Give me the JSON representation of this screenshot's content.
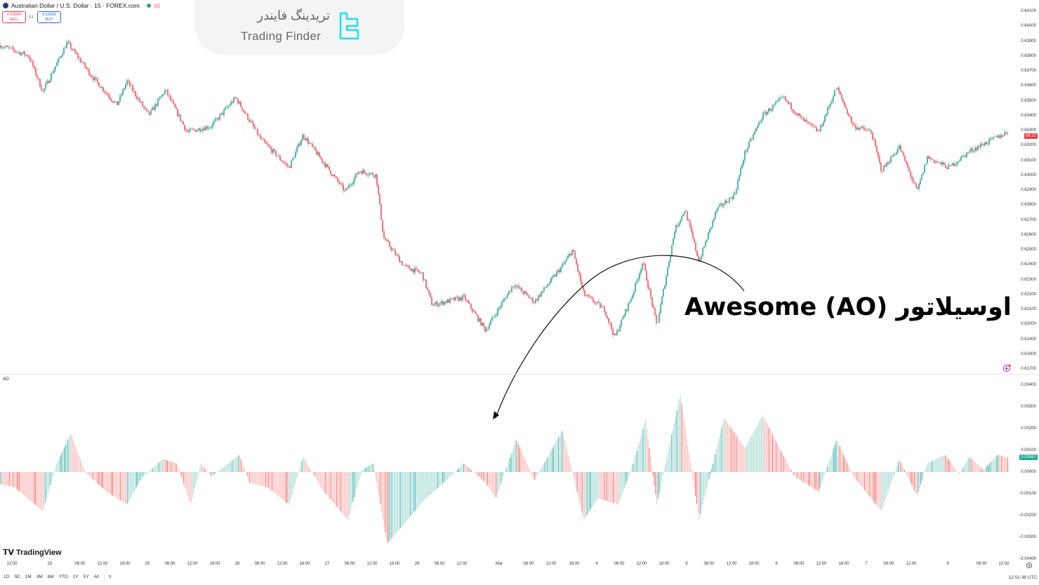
{
  "header": {
    "symbol": "Australian Dollar / U.S. Dollar · 15 · FOREX.com",
    "sell_price": "0.63264",
    "sell_label": "SELL",
    "buy_price": "0.63265",
    "buy_label": "BUY",
    "spread": "0.1"
  },
  "watermark": {
    "name_fa": "تریدینگ فایندر",
    "name_en": "Trading Finder",
    "accent": "#19e3f0"
  },
  "annotation": "اوسیلاتور Awesome (AO)",
  "price_axis": {
    "labels": [
      "0.64100",
      "0.64000",
      "0.63900",
      "0.63800",
      "0.63700",
      "0.63600",
      "0.63500",
      "0.63400",
      "0.63300",
      "0.63200",
      "0.63100",
      "0.63000",
      "0.62900",
      "0.62800",
      "0.62700",
      "0.62600",
      "0.62500",
      "0.62400",
      "0.62300",
      "0.62200",
      "0.62100",
      "0.62000",
      "0.61900",
      "0.61800",
      "0.61700"
    ],
    "countdown": "08:22"
  },
  "ao_axis": {
    "labels": [
      "0.00400",
      "0.00300",
      "0.00200",
      "0.00100",
      "0.00000",
      "−0.00100",
      "−0.00200",
      "−0.00300",
      "−0.00400"
    ],
    "current": "0.00067"
  },
  "ao_label": "AO",
  "time_axis": [
    "12:00",
    "23",
    "06:00",
    "12:00",
    "18:00",
    "25",
    "06:00",
    "12:00",
    "18:00",
    "26",
    "06:00",
    "12:00",
    "18:00",
    "27",
    "06:00",
    "12:00",
    "18:00",
    "28",
    "06:00",
    "12:00",
    "Mar",
    "06:00",
    "12:00",
    "18:00",
    "4",
    "06:00",
    "12:00",
    "18:00",
    "5",
    "06:00",
    "12:00",
    "18:00",
    "6",
    "06:00",
    "12:00",
    "18:00",
    "7",
    "06:00",
    "12:00",
    "9",
    "06:00",
    "12:00"
  ],
  "range_buttons": [
    "1D",
    "5D",
    "1M",
    "3M",
    "6M",
    "YTD",
    "1Y",
    "5Y",
    "All"
  ],
  "clock": "12:51:38 UTC",
  "branding": "TradingView",
  "colors": {
    "up": "#089981",
    "down": "#f23645",
    "ao_up": "#26a69a",
    "ao_down": "#ef5350"
  },
  "chart_data": [
    {
      "type": "candlestick",
      "title": "Australian Dollar / U.S. Dollar · 15 · FOREX.com",
      "x_unit": "15-min bar index",
      "ylim": [
        0.617,
        0.641
      ],
      "close_path": [
        [
          0,
          0.6387
        ],
        [
          30,
          0.638
        ],
        [
          45,
          0.6356
        ],
        [
          71,
          0.6389
        ],
        [
          98,
          0.6366
        ],
        [
          124,
          0.6347
        ],
        [
          135,
          0.6363
        ],
        [
          158,
          0.634
        ],
        [
          176,
          0.6357
        ],
        [
          199,
          0.6329
        ],
        [
          225,
          0.6333
        ],
        [
          251,
          0.6352
        ],
        [
          278,
          0.6324
        ],
        [
          308,
          0.6305
        ],
        [
          323,
          0.6327
        ],
        [
          368,
          0.6289
        ],
        [
          383,
          0.6303
        ],
        [
          401,
          0.63
        ],
        [
          409,
          0.6258
        ],
        [
          431,
          0.6239
        ],
        [
          450,
          0.6234
        ],
        [
          461,
          0.6213
        ],
        [
          495,
          0.6218
        ],
        [
          518,
          0.6196
        ],
        [
          548,
          0.6227
        ],
        [
          570,
          0.6215
        ],
        [
          600,
          0.6239
        ],
        [
          611,
          0.625
        ],
        [
          623,
          0.622
        ],
        [
          645,
          0.621
        ],
        [
          656,
          0.6191
        ],
        [
          675,
          0.622
        ],
        [
          686,
          0.6242
        ],
        [
          701,
          0.6199
        ],
        [
          720,
          0.6263
        ],
        [
          731,
          0.6277
        ],
        [
          746,
          0.6242
        ],
        [
          765,
          0.6277
        ],
        [
          784,
          0.6287
        ],
        [
          795,
          0.6315
        ],
        [
          814,
          0.634
        ],
        [
          836,
          0.6352
        ],
        [
          855,
          0.6338
        ],
        [
          874,
          0.6329
        ],
        [
          893,
          0.6359
        ],
        [
          911,
          0.6333
        ],
        [
          930,
          0.6329
        ],
        [
          941,
          0.6303
        ],
        [
          960,
          0.6319
        ],
        [
          979,
          0.6289
        ],
        [
          990,
          0.6312
        ],
        [
          1013,
          0.6305
        ],
        [
          1035,
          0.6316
        ],
        [
          1050,
          0.6321
        ],
        [
          1076,
          0.6329
        ]
      ]
    },
    {
      "type": "bar",
      "title": "AO",
      "x_unit": "15-min bar index",
      "ylim": [
        -0.004,
        0.004
      ],
      "ao_path": [
        [
          0,
          -0.00055
        ],
        [
          15,
          -0.0007
        ],
        [
          45,
          -0.0018
        ],
        [
          60,
          0.0004
        ],
        [
          75,
          0.0018
        ],
        [
          90,
          0
        ],
        [
          113,
          -0.0009
        ],
        [
          135,
          -0.0015
        ],
        [
          150,
          -0.0003
        ],
        [
          173,
          0.0006
        ],
        [
          188,
          0.0004
        ],
        [
          203,
          -0.0015
        ],
        [
          214,
          0.0004
        ],
        [
          225,
          -0.0002
        ],
        [
          255,
          0.0008
        ],
        [
          266,
          -0.0005
        ],
        [
          285,
          -0.0007
        ],
        [
          308,
          -0.0015
        ],
        [
          323,
          0.0007
        ],
        [
          345,
          -0.0009
        ],
        [
          371,
          -0.0022
        ],
        [
          386,
          0.0001
        ],
        [
          398,
          0.0004
        ],
        [
          413,
          -0.0033
        ],
        [
          450,
          -0.0014
        ],
        [
          473,
          -0.0005
        ],
        [
          495,
          0.0004
        ],
        [
          518,
          -0.0005
        ],
        [
          529,
          -0.0012
        ],
        [
          551,
          0.0015
        ],
        [
          570,
          -0.0004
        ],
        [
          600,
          0.0019
        ],
        [
          623,
          -0.0022
        ],
        [
          638,
          -0.0012
        ],
        [
          660,
          -0.0015
        ],
        [
          675,
          0.0003
        ],
        [
          689,
          0.0024
        ],
        [
          701,
          -0.0015
        ],
        [
          726,
          0.0036
        ],
        [
          746,
          -0.0022
        ],
        [
          773,
          0.0025
        ],
        [
          795,
          0.0011
        ],
        [
          814,
          0.0026
        ],
        [
          848,
          -0.0002
        ],
        [
          874,
          -0.0009
        ],
        [
          893,
          0.0015
        ],
        [
          911,
          -0.0002
        ],
        [
          941,
          -0.0018
        ],
        [
          960,
          0.0006
        ],
        [
          979,
          -0.0011
        ],
        [
          990,
          0.0004
        ],
        [
          1009,
          0.0008
        ],
        [
          1024,
          -0.0001
        ],
        [
          1035,
          0.0007
        ],
        [
          1050,
          0.0001
        ],
        [
          1065,
          0.0008
        ],
        [
          1076,
          0.00067
        ]
      ]
    }
  ]
}
